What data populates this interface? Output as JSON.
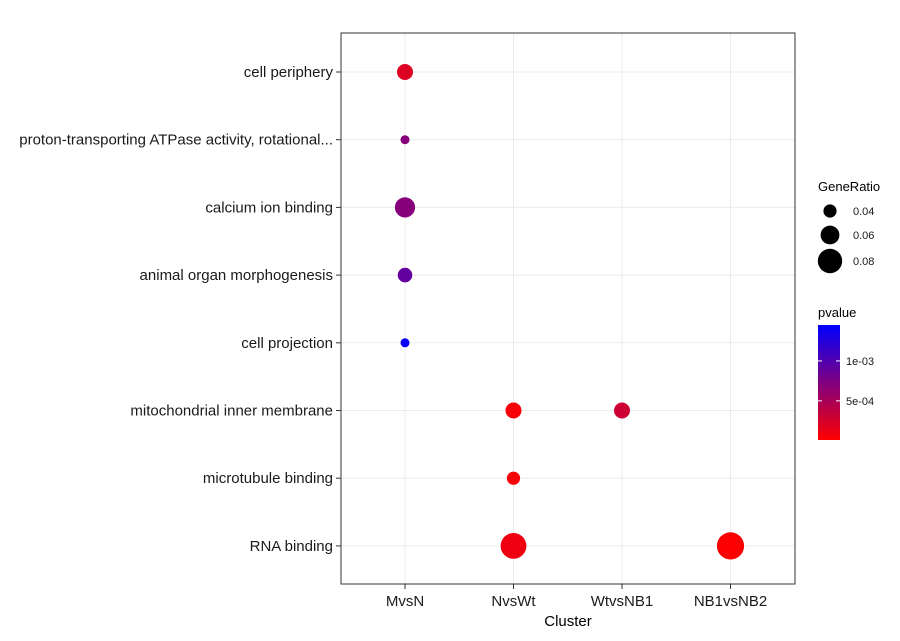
{
  "chart_data": {
    "type": "scatter",
    "xlabel": "Cluster",
    "ylabel": "",
    "x_categories": [
      "MvsN",
      "NvsWt",
      "WtvsNB1",
      "NB1vsNB2"
    ],
    "y_categories": [
      "cell periphery",
      "proton-transporting ATPase activity, rotational...",
      "calcium ion binding",
      "animal organ morphogenesis",
      "cell projection",
      "mitochondrial inner membrane",
      "microtubule binding",
      "RNA binding"
    ],
    "points": [
      {
        "cluster": "MvsN",
        "term": "cell periphery",
        "gene_ratio": 0.05,
        "pvalue": 0.0002
      },
      {
        "cluster": "MvsN",
        "term": "proton-transporting ATPase activity, rotational...",
        "gene_ratio": 0.025,
        "pvalue": 0.0007
      },
      {
        "cluster": "MvsN",
        "term": "calcium ion binding",
        "gene_ratio": 0.065,
        "pvalue": 0.0007
      },
      {
        "cluster": "MvsN",
        "term": "animal organ morphogenesis",
        "gene_ratio": 0.045,
        "pvalue": 0.0009
      },
      {
        "cluster": "MvsN",
        "term": "cell projection",
        "gene_ratio": 0.025,
        "pvalue": 0.0014
      },
      {
        "cluster": "NvsWt",
        "term": "mitochondrial inner membrane",
        "gene_ratio": 0.05,
        "pvalue": 5e-05
      },
      {
        "cluster": "NvsWt",
        "term": "microtubule binding",
        "gene_ratio": 0.04,
        "pvalue": 5e-05
      },
      {
        "cluster": "NvsWt",
        "term": "RNA binding",
        "gene_ratio": 0.085,
        "pvalue": 0.0001
      },
      {
        "cluster": "WtvsNB1",
        "term": "mitochondrial inner membrane",
        "gene_ratio": 0.05,
        "pvalue": 0.0003
      },
      {
        "cluster": "NB1vsNB2",
        "term": "RNA binding",
        "gene_ratio": 0.09,
        "pvalue": 2e-05
      }
    ],
    "size_legend": {
      "title": "GeneRatio",
      "labels": [
        "0.04",
        "0.06",
        "0.08"
      ],
      "values": [
        0.04,
        0.06,
        0.08
      ]
    },
    "color_legend": {
      "title": "pvalue",
      "labels": [
        "1e-03",
        "5e-04"
      ],
      "values": [
        0.001,
        0.0005
      ],
      "range": [
        1e-05,
        0.00145
      ],
      "low_color": "#ff0000",
      "high_color": "#0000ff"
    },
    "grid": true,
    "legend_position": "right"
  }
}
